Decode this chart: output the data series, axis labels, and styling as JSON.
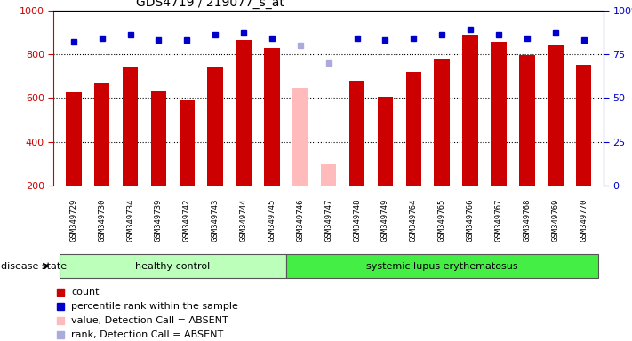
{
  "title": "GDS4719 / 219077_s_at",
  "samples": [
    "GSM349729",
    "GSM349730",
    "GSM349734",
    "GSM349739",
    "GSM349742",
    "GSM349743",
    "GSM349744",
    "GSM349745",
    "GSM349746",
    "GSM349747",
    "GSM349748",
    "GSM349749",
    "GSM349764",
    "GSM349765",
    "GSM349766",
    "GSM349767",
    "GSM349768",
    "GSM349769",
    "GSM349770"
  ],
  "count_values": [
    625,
    665,
    745,
    630,
    590,
    740,
    865,
    830,
    645,
    300,
    680,
    605,
    720,
    775,
    890,
    855,
    795,
    840,
    750
  ],
  "percentile_values": [
    82,
    84,
    86,
    83,
    83,
    86,
    87,
    84,
    80,
    70,
    84,
    83,
    84,
    86,
    89,
    86,
    84,
    87,
    83
  ],
  "absent_mask": [
    false,
    false,
    false,
    false,
    false,
    false,
    false,
    false,
    true,
    true,
    false,
    false,
    false,
    false,
    false,
    false,
    false,
    false,
    false
  ],
  "count_color_present": "#cc0000",
  "count_color_absent": "#ffbbbb",
  "rank_color_present": "#0000cc",
  "rank_color_absent": "#aaaadd",
  "healthy_count": 8,
  "healthy_label": "healthy control",
  "disease_label": "systemic lupus erythematosus",
  "disease_state_label": "disease state",
  "ylim_left": [
    200,
    1000
  ],
  "ylim_right": [
    0,
    100
  ],
  "yticks_left": [
    200,
    400,
    600,
    800,
    1000
  ],
  "yticks_right": [
    0,
    25,
    50,
    75,
    100
  ],
  "grid_values": [
    400,
    600,
    800
  ],
  "healthy_color": "#bbffbb",
  "disease_color": "#44ee44",
  "legend_items": [
    {
      "label": "count",
      "color": "#cc0000"
    },
    {
      "label": "percentile rank within the sample",
      "color": "#0000cc"
    },
    {
      "label": "value, Detection Call = ABSENT",
      "color": "#ffbbbb"
    },
    {
      "label": "rank, Detection Call = ABSENT",
      "color": "#aaaadd"
    }
  ]
}
